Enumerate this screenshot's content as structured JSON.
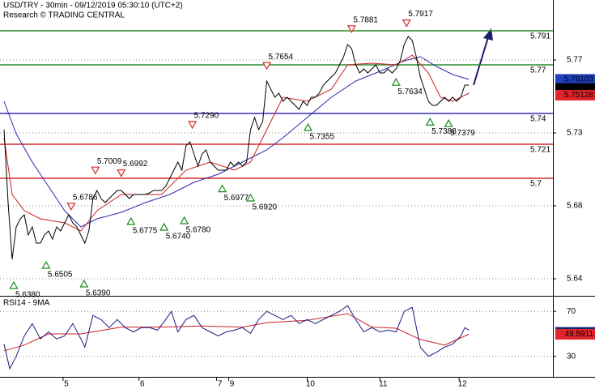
{
  "chart_data": [
    {
      "type": "line",
      "title": "USD/TRY - 30min - 09/12/2019 05:30:10 (UTC+2)",
      "subtitle": "Research © TRADING CENTRAL",
      "xlim": [
        0,
        136.8
      ],
      "ylim": [
        5.6275,
        5.81
      ],
      "yticks": [
        {
          "value": 5.773,
          "label": "5.77"
        },
        {
          "value": 5.728,
          "label": "5.73"
        },
        {
          "value": 5.683,
          "label": "5.68"
        },
        {
          "value": 5.638,
          "label": "5.64"
        }
      ],
      "grid": true,
      "x": [
        1,
        2,
        3,
        4,
        5,
        6,
        7,
        8,
        9,
        10,
        11,
        12,
        13,
        14,
        15,
        16,
        17,
        18,
        19,
        20,
        21,
        22,
        23,
        24,
        25,
        26,
        27,
        28,
        29,
        30,
        31,
        32,
        33,
        34,
        35,
        36,
        37,
        38,
        39,
        40,
        41,
        42,
        43,
        44,
        45,
        46,
        47,
        48,
        49,
        50,
        51,
        52,
        53,
        54,
        55,
        56,
        57,
        58,
        59,
        60,
        61,
        62,
        63,
        64,
        65,
        66,
        67,
        68,
        69,
        70,
        71,
        72,
        73,
        74,
        75,
        76,
        77,
        78,
        79,
        80,
        81,
        82,
        83,
        84,
        85,
        86,
        87,
        88,
        89,
        90,
        91,
        92,
        93,
        94,
        95,
        96,
        97,
        98,
        99,
        100,
        101,
        102,
        103,
        104,
        105,
        106,
        107,
        108,
        109,
        110,
        111,
        112,
        113,
        114,
        115,
        116
      ],
      "series": [
        {
          "color": "#000000",
          "values": [
            5.73,
            5.685,
            5.65,
            5.67,
            5.675,
            5.6775,
            5.665,
            5.67,
            5.66,
            5.66,
            5.665,
            5.6675,
            5.6625,
            5.67,
            5.6675,
            5.6725,
            5.6775,
            5.6725,
            5.67,
            5.665,
            5.66,
            5.6675,
            5.6875,
            5.6925,
            5.6875,
            5.685,
            5.6875,
            5.69,
            5.6925,
            5.6925,
            5.69,
            5.6875,
            5.69,
            5.69,
            5.69,
            5.69,
            5.691,
            5.6925,
            5.6925,
            5.6925,
            5.695,
            5.7,
            5.705,
            5.71,
            5.705,
            5.72,
            5.7225,
            5.715,
            5.7075,
            5.715,
            5.7175,
            5.71,
            5.7075,
            5.705,
            5.705,
            5.705,
            5.71,
            5.7075,
            5.71,
            5.7075,
            5.71,
            5.73,
            5.7375,
            5.73,
            5.735,
            5.76,
            5.755,
            5.75,
            5.7525,
            5.7475,
            5.75,
            5.7475,
            5.745,
            5.7425,
            5.7475,
            5.745,
            5.75,
            5.75,
            5.7525,
            5.7575,
            5.76,
            5.7625,
            5.765,
            5.77,
            5.775,
            5.7825,
            5.78,
            5.77,
            5.765,
            5.7675,
            5.765,
            5.7675,
            5.77,
            5.765,
            5.765,
            5.7675,
            5.765,
            5.7675,
            5.7725,
            5.7825,
            5.7875,
            5.785,
            5.775,
            5.7625,
            5.755,
            5.7475,
            5.745,
            5.745,
            5.7475,
            5.75,
            5.7475,
            5.75,
            5.7475,
            5.75,
            5.7575,
            5.7575
          ]
        }
      ],
      "overlays": [
        {
          "color": "#2b2bb0",
          "x": [
            1,
            4,
            8,
            12,
            16,
            20,
            24,
            30,
            36,
            42,
            48,
            54,
            60,
            66,
            70,
            76,
            82,
            88,
            94,
            100,
            104,
            108,
            112,
            116
          ],
          "values": [
            5.7475,
            5.7275,
            5.71,
            5.695,
            5.68,
            5.67,
            5.675,
            5.679,
            5.685,
            5.69,
            5.6975,
            5.7025,
            5.71,
            5.7175,
            5.725,
            5.7375,
            5.75,
            5.76,
            5.766,
            5.7725,
            5.775,
            5.769,
            5.764,
            5.761
          ]
        },
        {
          "color": "#cc2222",
          "x": [
            1,
            3,
            6,
            10,
            16,
            20,
            24,
            30,
            40,
            46,
            52,
            58,
            62,
            66,
            70,
            76,
            82,
            86,
            92,
            98,
            102,
            106,
            109,
            112,
            116
          ],
          "values": [
            5.725,
            5.69,
            5.68,
            5.675,
            5.6725,
            5.6675,
            5.68,
            5.69,
            5.69,
            5.705,
            5.71,
            5.705,
            5.71,
            5.73,
            5.75,
            5.7475,
            5.755,
            5.77,
            5.771,
            5.77,
            5.776,
            5.765,
            5.75,
            5.7475,
            5.7525
          ]
        }
      ],
      "levels": [
        {
          "value": 5.791,
          "color": "#2a8a2a"
        },
        {
          "value": 5.77,
          "color": "#2a8a2a"
        },
        {
          "value": 5.74,
          "color": "#3a2ab8"
        },
        {
          "value": 5.721,
          "color": "#d42a2a"
        },
        {
          "value": 5.7,
          "color": "#d42a2a"
        }
      ],
      "annotations": {
        "x": [
          3.4,
          11.4,
          17.6,
          20.8,
          23.6,
          30,
          32.4,
          40.6,
          45.6,
          47.6,
          55,
          62,
          66,
          76.2,
          87,
          100.6,
          98,
          106.4,
          111
        ],
        "values": [
          5.638,
          5.6505,
          5.6786,
          5.639,
          5.7009,
          5.6992,
          5.6775,
          5.674,
          5.678,
          5.729,
          5.6977,
          5.692,
          5.7654,
          5.7355,
          5.7881,
          5.7917,
          5.7634,
          5.7388,
          5.7379
        ],
        "value_labels": [
          "5.6380",
          "5.6505",
          "5.6786",
          "5.6390",
          "5.7009",
          "5.6992",
          "5.6775",
          "5.6740",
          "5.6780",
          "5.7290",
          "5.6977",
          "5.6920",
          "5.7654",
          "5.7355",
          "5.7881",
          "5.7917",
          "5.7634",
          "5.7388",
          "5.7379"
        ],
        "direction": [
          "up",
          "up",
          "down",
          "up",
          "down",
          "down",
          "up",
          "up",
          "up",
          "down",
          "up",
          "up",
          "down",
          "up",
          "down",
          "down",
          "up",
          "up",
          "up"
        ]
      },
      "axis_boxes": [
        {
          "value": 5.76103,
          "color": "#1f3fbf"
        },
        {
          "value": 5.7554,
          "color": "#000000"
        },
        {
          "value": 5.75128,
          "color": "#e0252a"
        }
      ]
    },
    {
      "type": "line",
      "title": "RSI14 - 9MA",
      "xlim": [
        0,
        136.8
      ],
      "ylim": [
        11.8,
        83.1
      ],
      "yticks": [
        70,
        30
      ],
      "grid": true,
      "xticks": [
        {
          "value": 15.6,
          "label": "5"
        },
        {
          "value": 34.4,
          "label": "6"
        },
        {
          "value": 53.6,
          "label": "7"
        },
        {
          "value": 56.6,
          "label": "9"
        },
        {
          "value": 76,
          "label": "10"
        },
        {
          "value": 94,
          "label": "11"
        },
        {
          "value": 113.6,
          "label": "12"
        }
      ],
      "x": [
        1,
        2.4,
        4,
        6,
        8,
        10,
        12,
        14,
        16,
        18,
        20,
        21,
        23,
        25,
        27,
        29,
        31,
        33,
        35,
        37,
        39,
        41,
        42.4,
        44,
        46,
        48,
        50,
        52,
        54,
        56,
        58,
        60,
        62,
        64,
        66,
        68,
        70,
        72,
        74,
        76,
        78,
        80,
        82,
        84,
        86,
        88,
        90,
        92,
        94,
        96,
        98,
        100,
        102,
        104,
        106,
        108,
        110,
        112,
        114,
        115,
        116
      ],
      "series": [
        {
          "color": "#1a1a80",
          "values": [
            40.9,
            19.1,
            30,
            48.2,
            59.1,
            45.5,
            51.8,
            45.5,
            48.2,
            59.1,
            45.5,
            38.2,
            66.4,
            62.7,
            55.5,
            62.7,
            55.5,
            51.8,
            55.5,
            55.5,
            53.3,
            62.7,
            70,
            51.8,
            62.7,
            66.4,
            55.5,
            51.8,
            48.2,
            51.8,
            53.3,
            55.5,
            50.4,
            62.7,
            70,
            66.4,
            62.7,
            66.4,
            59.1,
            62.7,
            59.1,
            62.7,
            66.4,
            70,
            75.1,
            62.7,
            51.8,
            55.5,
            51.8,
            53.3,
            51.8,
            70,
            73.6,
            38.2,
            30,
            33.6,
            38.2,
            40.9,
            48.2,
            55.5,
            53.3
          ]
        }
      ],
      "overlays": [
        {
          "color": "#cc2222",
          "x": [
            1,
            6,
            12,
            20,
            30,
            40,
            50,
            60,
            66,
            76,
            86,
            92,
            98,
            104,
            110,
            116
          ],
          "values": [
            35,
            40,
            50,
            50,
            56,
            56,
            57,
            56,
            60,
            62,
            68,
            56,
            55,
            45,
            40,
            49.6
          ]
        }
      ],
      "axis_boxes": [
        {
          "value": 51.3842,
          "color": "#1a2a7a"
        },
        {
          "value": 49.5911,
          "color": "#e0252a"
        }
      ]
    }
  ]
}
